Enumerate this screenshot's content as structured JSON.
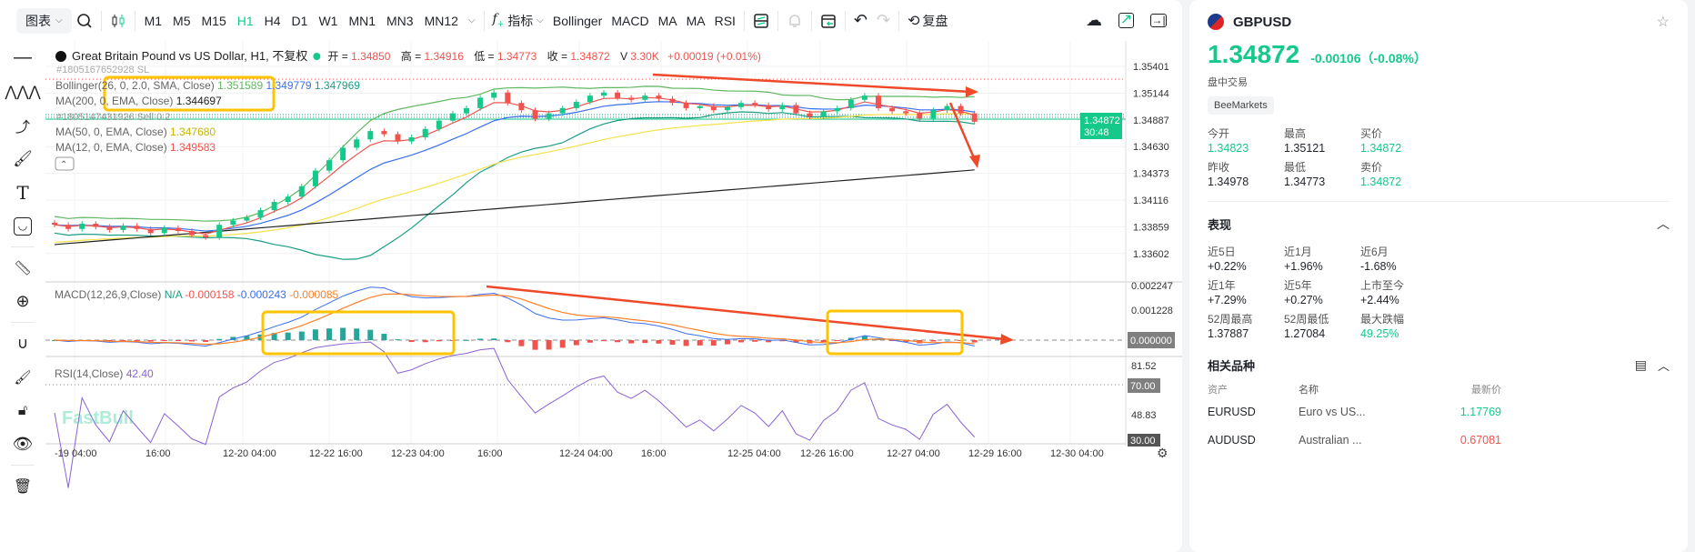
{
  "toolbar": {
    "chart_menu": "图表",
    "timeframes": [
      "M1",
      "M5",
      "M15",
      "H1",
      "H4",
      "D1",
      "W1",
      "MN1",
      "MN3",
      "MN12"
    ],
    "active_timeframe": "H1",
    "indicators_label": "指标",
    "indicator_shortcuts": [
      "Bollinger",
      "MACD",
      "MA",
      "MA",
      "RSI"
    ],
    "replay_label": "复盘"
  },
  "chart": {
    "title": "Great Britain Pound vs US Dollar, H1, 不复权",
    "ohlc": {
      "open_label": "开 =",
      "open": "1.34850",
      "high_label": "高 =",
      "high": "1.34916",
      "low_label": "低 =",
      "low": "1.34773",
      "close_label": "收 =",
      "close": "1.34872",
      "vol_label": "V",
      "vol": "3.30K",
      "change": "+0.00019 (+0.01%)"
    },
    "order_line_1": "#1805167652928 SL",
    "order_line_2": "#1805147431926 Sell 0.2",
    "bollinger": {
      "label": "Bollinger(26, 0, 2.0, SMA, Close)",
      "upper": "1.351589",
      "mid": "1.349779",
      "lower": "1.347969"
    },
    "ma200": {
      "label": "MA(200, 0, EMA, Close)",
      "value": "1.344697"
    },
    "ma50": {
      "label": "MA(50, 0, EMA, Close)",
      "value": "1.347680"
    },
    "ma12": {
      "label": "MA(12, 0, EMA, Close)",
      "value": "1.349583"
    },
    "price_axis": [
      "1.35401",
      "1.35144",
      "1.34887",
      "1.34630",
      "1.34373",
      "1.34116",
      "1.33859",
      "1.33602"
    ],
    "current_price": "1.34872",
    "countdown": "30:48",
    "macd": {
      "label": "MACD(12,26,9,Close)",
      "na": "N/A",
      "hist": "-0.000158",
      "macd": "-0.000243",
      "signal": "-0.000085",
      "axis": [
        "0.002247",
        "0.001228"
      ],
      "zero_badge": "0.000000"
    },
    "rsi": {
      "label": "RSI(14,Close)",
      "value": "42.40",
      "axis": [
        "81.52",
        "48.83"
      ],
      "badge_70": "70.00",
      "badge_30": "30.00"
    },
    "time_axis": [
      "-19 04:00",
      "16:00",
      "12-20 04:00",
      "12-22 16:00",
      "12-23 04:00",
      "16:00",
      "12-24 04:00",
      "16:00",
      "12-25 04:00",
      "12-26 16:00",
      "12-27 04:00",
      "12-29 16:00",
      "12-30 04:00"
    ],
    "watermark": "FastBull",
    "closes": [
      1.3388,
      1.3384,
      1.3389,
      1.3386,
      1.3383,
      1.3387,
      1.3384,
      1.338,
      1.3385,
      1.3382,
      1.3378,
      1.3376,
      1.3388,
      1.3392,
      1.3395,
      1.3402,
      1.341,
      1.3415,
      1.3425,
      1.344,
      1.345,
      1.3462,
      1.347,
      1.3478,
      1.3475,
      1.3468,
      1.3472,
      1.348,
      1.3488,
      1.3495,
      1.35,
      1.351,
      1.3515,
      1.3505,
      1.3498,
      1.349,
      1.3495,
      1.35,
      1.3506,
      1.3512,
      1.3515,
      1.351,
      1.3508,
      1.3512,
      1.3509,
      1.3505,
      1.35,
      1.3502,
      1.3498,
      1.3501,
      1.3505,
      1.3503,
      1.3499,
      1.3503,
      1.3495,
      1.3492,
      1.3497,
      1.35,
      1.3508,
      1.3512,
      1.35,
      1.3497,
      1.3495,
      1.349,
      1.3498,
      1.3502,
      1.3495,
      1.3487
    ],
    "colors": {
      "up": "#14c98a",
      "down": "#f0534e",
      "boll_upper": "#5fb85f",
      "boll_mid": "#3a6ff0",
      "boll_lower": "#1a9e84",
      "ma200": "#222222",
      "ma50": "#f5e14a",
      "ma12": "#f0534e",
      "macd": "#3a6ff0",
      "signal": "#ff7f27",
      "rsi": "#8a63d2",
      "annotation_arrow": "#ee4a2a",
      "annotation_box": "#ffc400"
    }
  },
  "panel": {
    "symbol": "GBPUSD",
    "price": "1.34872",
    "change": "-0.00106（-0.08%）",
    "status": "盘中交易",
    "broker": "BeeMarkets",
    "quote": [
      {
        "label": "今开",
        "value": "1.34823",
        "color": "green"
      },
      {
        "label": "最高",
        "value": "1.35121",
        "color": ""
      },
      {
        "label": "买价",
        "value": "1.34872",
        "color": "green"
      },
      {
        "label": "昨收",
        "value": "1.34978",
        "color": ""
      },
      {
        "label": "最低",
        "value": "1.34773",
        "color": ""
      },
      {
        "label": "卖价",
        "value": "1.34872",
        "color": "green"
      }
    ],
    "performance_title": "表现",
    "performance": [
      {
        "label": "近5日",
        "value": "+0.22%",
        "color": ""
      },
      {
        "label": "近1月",
        "value": "+1.96%",
        "color": ""
      },
      {
        "label": "近6月",
        "value": "-1.68%",
        "color": ""
      },
      {
        "label": "近1年",
        "value": "+7.29%",
        "color": ""
      },
      {
        "label": "近5年",
        "value": "+0.27%",
        "color": ""
      },
      {
        "label": "上市至今",
        "value": "+2.44%",
        "color": ""
      },
      {
        "label": "52周最高",
        "value": "1.37887",
        "color": ""
      },
      {
        "label": "52周最低",
        "value": "1.27084",
        "color": ""
      },
      {
        "label": "最大跌幅",
        "value": "49.25%",
        "color": "green"
      }
    ],
    "related_title": "相关品种",
    "related_headers": [
      "资产",
      "名称",
      "最新价"
    ],
    "related": [
      {
        "asset": "EURUSD",
        "name": "Euro vs US...",
        "price": "1.17769",
        "color": "green"
      },
      {
        "asset": "AUDUSD",
        "name": "Australian ...",
        "price": "0.67081",
        "color": "red"
      }
    ]
  }
}
